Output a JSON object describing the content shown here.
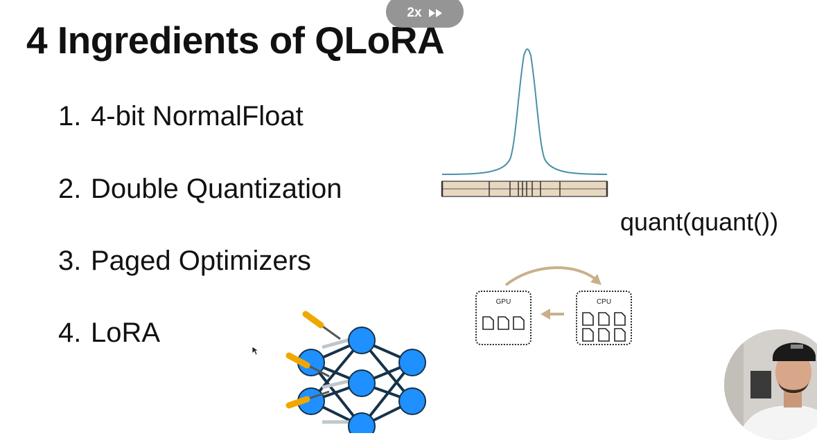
{
  "player": {
    "speed_label": "2x",
    "fast_forward_icon": "fast-forward-icon"
  },
  "slide": {
    "title": "4 Ingredients of QLoRA",
    "items": [
      {
        "number": "1.",
        "text": "4-bit NormalFloat"
      },
      {
        "number": "2.",
        "text": "Double Quantization"
      },
      {
        "number": "3.",
        "text": "Paged Optimizers"
      },
      {
        "number": "4.",
        "text": "LoRA"
      }
    ],
    "double_quant_label": "quant(quant())",
    "paging": {
      "gpu_label": "GPU",
      "cpu_label": "CPU",
      "arrow_color": "#c9b08a"
    },
    "network": {
      "node_color": "#1e90ff",
      "edge_color": "#16324a",
      "screwdriver_color": "#f0a800"
    },
    "normal_curve_color": "#4a8fa8",
    "quant_bar_color": "#e8d8c0"
  },
  "webcam": {
    "avatar_icon": "presenter-avatar"
  }
}
